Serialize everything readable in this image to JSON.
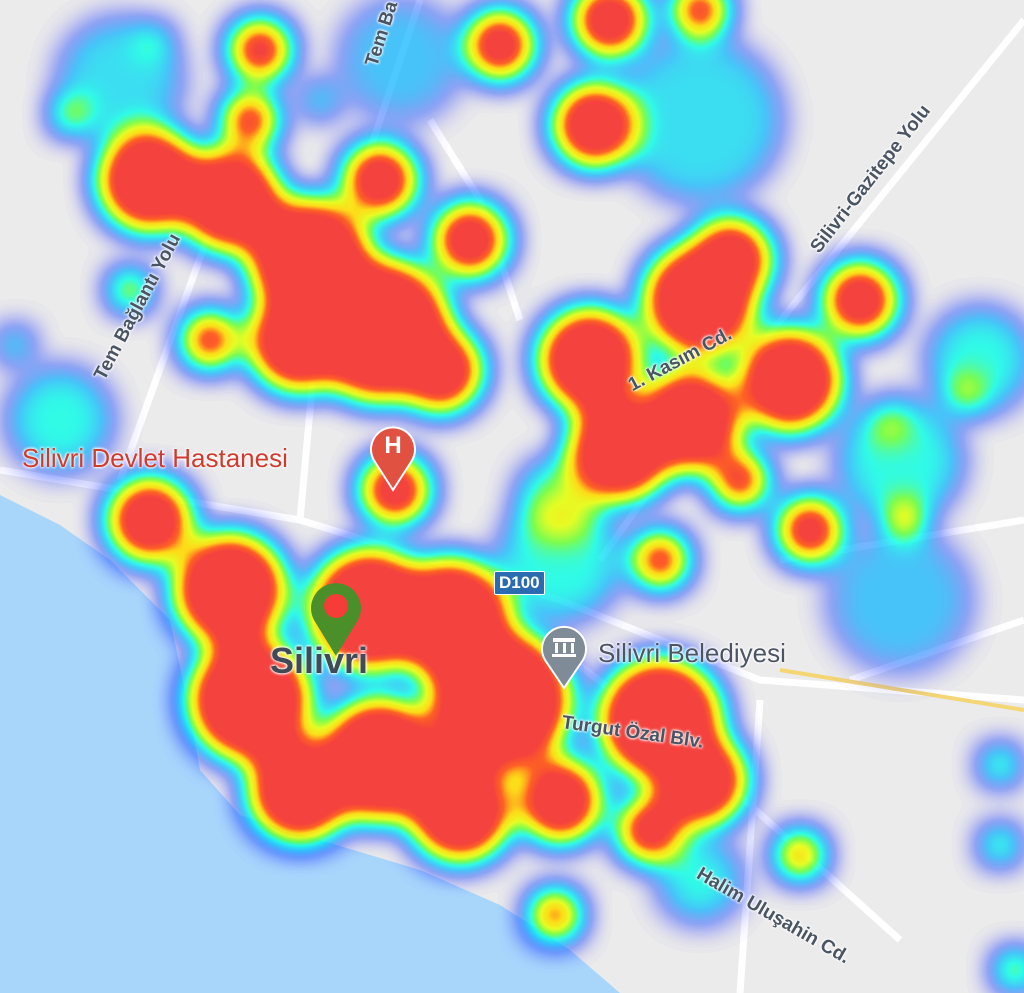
{
  "map": {
    "colors": {
      "land": "#ebebeb",
      "sea": "#a8d6fb",
      "heat_high": "#f53c37",
      "pin": "#4a8f2a",
      "hospital": "#d03b2f"
    },
    "labels": {
      "road_top": "Tem Ba",
      "road_left": "Tem Bağlantı Yolu",
      "road_gazitepe": "Silivri-Gazitepe Yolu",
      "road_kasim": "1. Kasım Cd.",
      "hospital": "Silivri Devlet Hastanesi",
      "highway_shield": "D100",
      "town": "Silivri",
      "municipality": "Silivri Belediyesi",
      "road_turgut": "Turgut Özal Blv.",
      "road_halim": "Halim Uluşahin Cd."
    },
    "icons": {
      "hospital": "hospital-pin-icon",
      "municipality": "government-building-pin-icon",
      "location": "location-pin-icon"
    }
  }
}
